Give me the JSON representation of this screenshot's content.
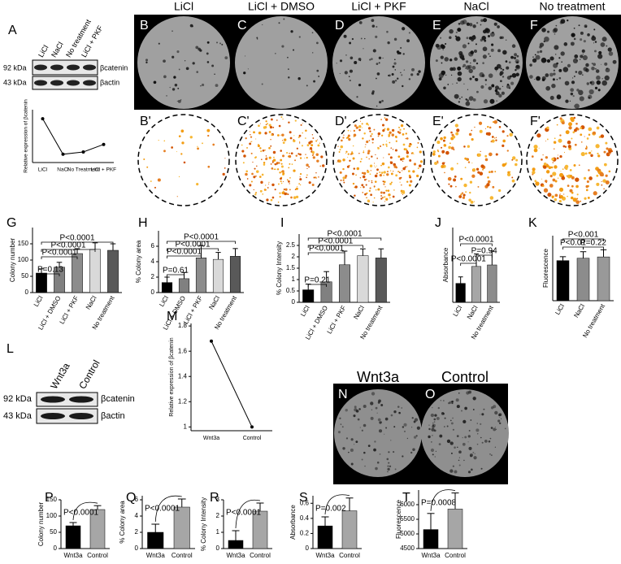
{
  "figure": {
    "panel_letters": [
      "A",
      "B",
      "C",
      "D",
      "E",
      "F",
      "B'",
      "C'",
      "D'",
      "E'",
      "F'",
      "G",
      "H",
      "I",
      "J",
      "K",
      "L",
      "M",
      "N",
      "O",
      "P",
      "Q",
      "R",
      "S",
      "T"
    ],
    "blot_a": {
      "lanes": [
        "LiCl",
        "NaCl",
        "No treatment",
        "LiCl + PKF"
      ],
      "bands": [
        {
          "size": "92 kDa",
          "protein": "βcatenin"
        },
        {
          "size": "43 kDa",
          "protein": "βactin"
        }
      ]
    },
    "plates_top": [
      "LiCl",
      "LiCl + DMSO",
      "LiCl + PKF",
      "NaCl",
      "No treatment"
    ],
    "blot_l": {
      "lanes": [
        "Wnt3a",
        "Control"
      ],
      "bands": [
        {
          "size": "92 kDa",
          "protein": "βcatenin"
        },
        {
          "size": "43 kDa",
          "protein": "βactin"
        }
      ]
    },
    "plates_bottom": [
      "Wnt3a",
      "Control"
    ]
  },
  "chart_data": [
    {
      "type": "line",
      "categories": [
        "LiCl",
        "NaCl",
        "No Treatment",
        "LiCl + PKF"
      ],
      "values": [
        1.43,
        0.96,
        0.99,
        1.09
      ],
      "ylim": [
        0.85,
        1.55
      ],
      "ylabel": "Relative expression of βcatenin",
      "color": "#000000"
    },
    {
      "type": "bar",
      "categories": [
        "LiCl",
        "LiCl + DMSO",
        "LiCl + PKF",
        "NaCl",
        "No treatment"
      ],
      "values": [
        60,
        78,
        120,
        133,
        130
      ],
      "errors": [
        13,
        15,
        15,
        20,
        20
      ],
      "colors": [
        "#000000",
        "#808080",
        "#8c8c8c",
        "#d9d9d9",
        "#595959"
      ],
      "ylim": [
        0,
        200
      ],
      "yticks": [
        0,
        50,
        100,
        150
      ],
      "ylabel": "Colony number",
      "annotations": [
        "P<0.0001",
        "P<0.0001",
        "P<0.0001",
        "P=0.13"
      ]
    },
    {
      "type": "bar",
      "categories": [
        "LiCl",
        "LiCl + DMSO",
        "LiCl + PKF",
        "NaCl",
        "No treatment"
      ],
      "values": [
        1.3,
        1.8,
        4.5,
        4.3,
        4.7
      ],
      "errors": [
        0.7,
        0.8,
        1.6,
        0.9,
        1.0
      ],
      "colors": [
        "#000000",
        "#808080",
        "#8c8c8c",
        "#d9d9d9",
        "#595959"
      ],
      "ylim": [
        0,
        8
      ],
      "yticks": [
        0,
        2,
        4,
        6
      ],
      "ylabel": "% Colony area",
      "annotations": [
        "P<0.0001",
        "P<0.0001",
        "P<0.0001",
        "P=0.61"
      ]
    },
    {
      "type": "bar",
      "categories": [
        "LiCl",
        "LiCl + DMSO",
        "LiCl + PKF",
        "NaCl",
        "No treatment"
      ],
      "values": [
        0.55,
        0.9,
        1.65,
        2.05,
        1.95
      ],
      "errors": [
        0.25,
        0.45,
        0.6,
        0.3,
        0.4
      ],
      "colors": [
        "#000000",
        "#808080",
        "#8c8c8c",
        "#d9d9d9",
        "#595959"
      ],
      "ylim": [
        0,
        3
      ],
      "yticks": [
        0,
        0.5,
        1,
        1.5,
        2,
        2.5
      ],
      "ylabel": "% Colony  Intensity",
      "annotations": [
        "P<0.0001",
        "P<0.0001",
        "P<0.0001",
        "P=0.21"
      ]
    },
    {
      "type": "bar",
      "categories": [
        "LiCl",
        "NaCl",
        "No treatment"
      ],
      "values": [
        0.38,
        0.72,
        0.75
      ],
      "errors": [
        0.13,
        0.25,
        0.28
      ],
      "colors": [
        "#000000",
        "#a6a6a6",
        "#8c8c8c"
      ],
      "ylim": [
        0,
        1.5
      ],
      "ylabel": "Absorbance",
      "annotations": [
        "P<0.0001",
        "P<0.0001",
        "P=0.94"
      ]
    },
    {
      "type": "bar",
      "categories": [
        "LiCl",
        "NaCl",
        "No treatment"
      ],
      "values": [
        1850,
        1960,
        2020
      ],
      "errors": [
        180,
        300,
        330
      ],
      "colors": [
        "#000000",
        "#8c8c8c",
        "#999999"
      ],
      "ylim": [
        0,
        3000
      ],
      "ylabel": "Fluorescence",
      "annotations": [
        "P<0.001",
        "P<0.01",
        "P=0.22"
      ]
    },
    {
      "type": "line",
      "categories": [
        "Wnt3a",
        "Control"
      ],
      "values": [
        1.68,
        1.0
      ],
      "ylim": [
        0.97,
        1.82
      ],
      "yticks": [
        1,
        1.2,
        1.4,
        1.6,
        1.8
      ],
      "ylabel": "Relative expression of βcatenin",
      "color": "#000000"
    },
    {
      "type": "bar",
      "categories": [
        "Wnt3a",
        "Control"
      ],
      "values": [
        70,
        120
      ],
      "errors": [
        10,
        12
      ],
      "colors": [
        "#000000",
        "#a6a6a6"
      ],
      "ylim": [
        0,
        150
      ],
      "yticks": [
        0,
        50,
        100,
        150
      ],
      "ylabel": "Colony number",
      "annotations": [
        "P<0.0001"
      ]
    },
    {
      "type": "bar",
      "categories": [
        "Wnt3a",
        "Control"
      ],
      "values": [
        2,
        5.1
      ],
      "errors": [
        1,
        1
      ],
      "colors": [
        "#000000",
        "#a6a6a6"
      ],
      "ylim": [
        0,
        6.5
      ],
      "yticks": [
        0,
        2,
        4,
        6
      ],
      "ylabel": "% Colony area",
      "annotations": [
        "P<0.0001"
      ]
    },
    {
      "type": "bar",
      "categories": [
        "Wnt3a",
        "Control"
      ],
      "values": [
        0.5,
        2.3
      ],
      "errors": [
        0.6,
        0.5
      ],
      "colors": [
        "#000000",
        "#a6a6a6"
      ],
      "ylim": [
        0,
        3
      ],
      "yticks": [
        0,
        1,
        2,
        3
      ],
      "ylabel": "% Colony  Intensity",
      "annotations": [
        "P<0.0001"
      ]
    },
    {
      "type": "bar",
      "categories": [
        "Wnt3a",
        "Control"
      ],
      "values": [
        0.3,
        0.5
      ],
      "errors": [
        0.12,
        0.17
      ],
      "colors": [
        "#000000",
        "#a6a6a6"
      ],
      "ylim": [
        0,
        0.7
      ],
      "yticks": [
        0,
        0.2,
        0.4,
        0.6
      ],
      "ylabel": "Absorbance",
      "annotations": [
        "P=0.002"
      ]
    },
    {
      "type": "bar",
      "categories": [
        "Wnt3a",
        "Control"
      ],
      "values": [
        5150,
        5850
      ],
      "errors": [
        550,
        550
      ],
      "colors": [
        "#000000",
        "#a6a6a6"
      ],
      "ylim": [
        4500,
        6500
      ],
      "yticks": [
        4500,
        5000,
        5500,
        6000
      ],
      "ylabel": "Fluorescence",
      "annotations": [
        "P=0.0008"
      ]
    }
  ]
}
